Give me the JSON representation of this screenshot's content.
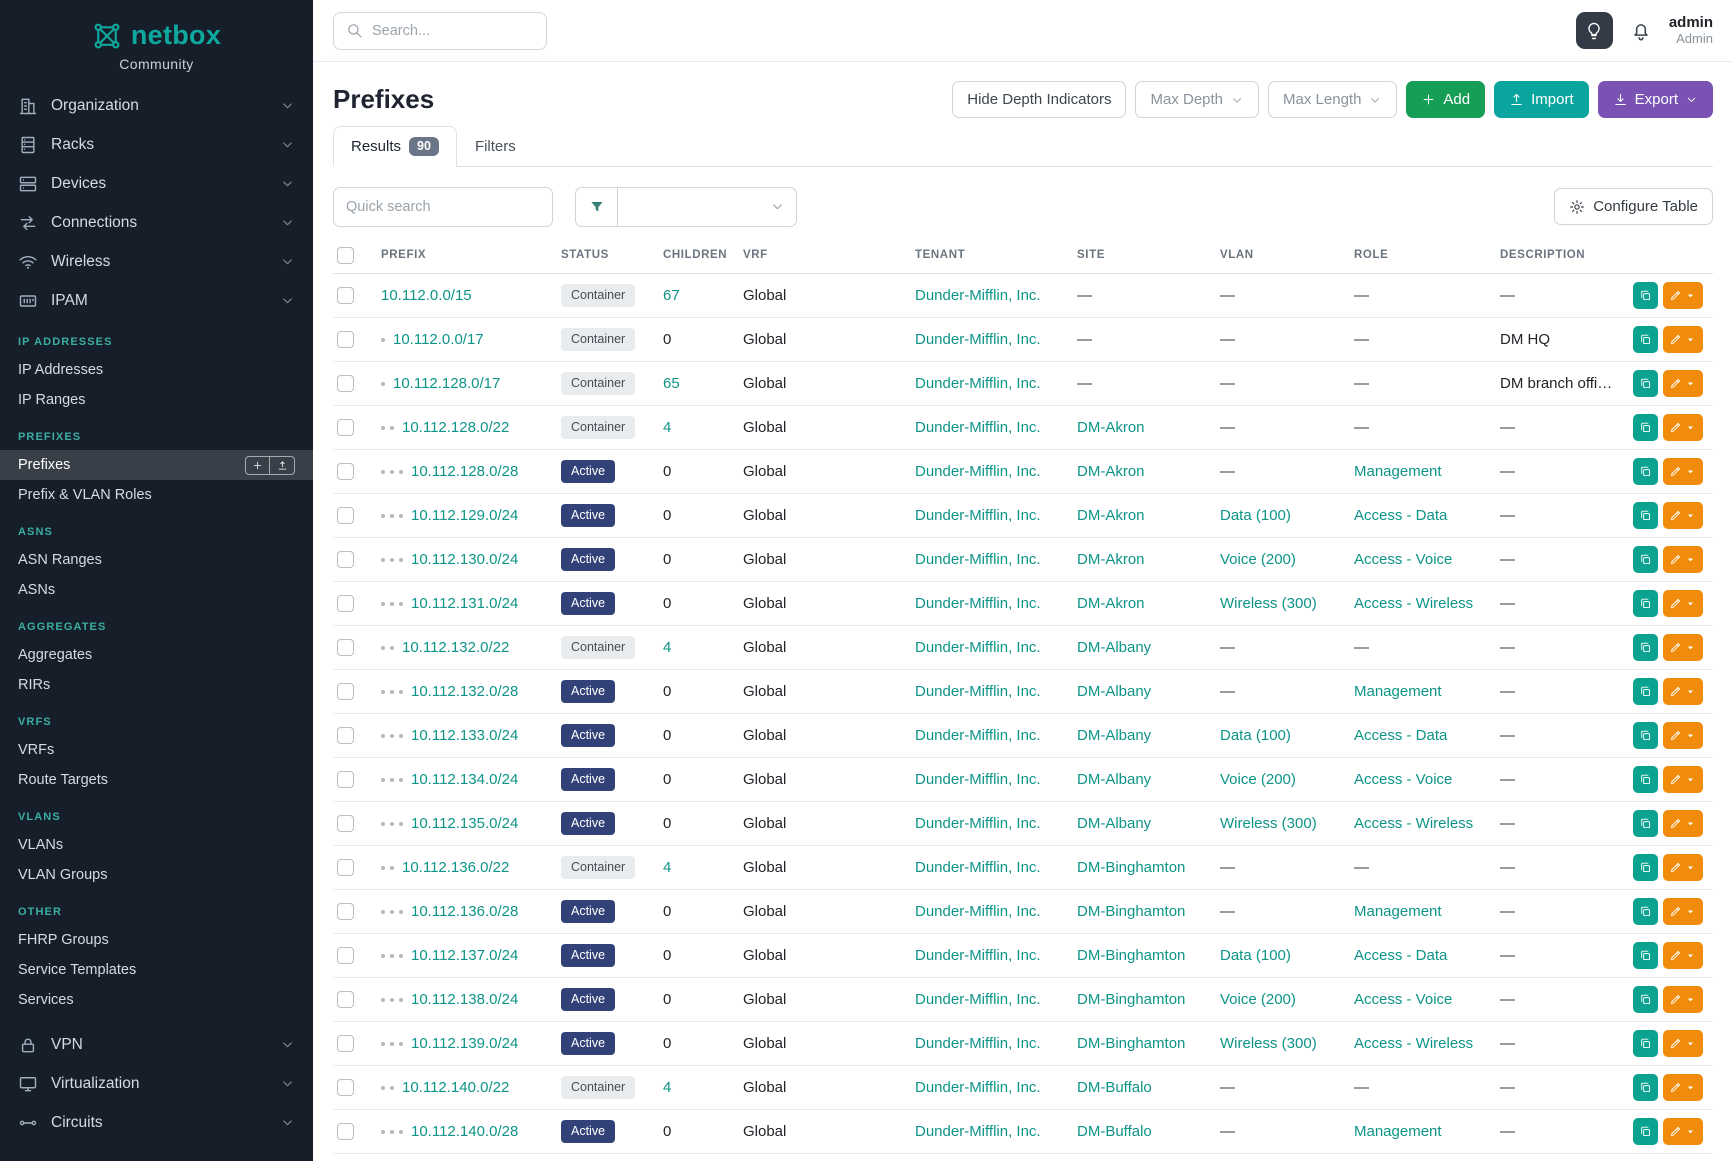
{
  "colors": {
    "link": "#0d9488",
    "brand_teal": "#0ea99e",
    "sidebar_background": "#161e2a",
    "section_header": "#3aaea2",
    "active_badge": "#324178",
    "container_badge_bg": "#e9ecef",
    "add_button": "#169e57",
    "import_button": "#0ba5a0",
    "export_button": "#7952b3",
    "clone_action": "#0ba390",
    "edit_action": "#f08b0b"
  },
  "sidebar": {
    "brand": "netbox",
    "subtitle": "Community",
    "logo_icon": "netbox-logo-icon",
    "nav_top": [
      {
        "label": "Organization",
        "icon": "building-icon"
      },
      {
        "label": "Racks",
        "icon": "rack-icon"
      },
      {
        "label": "Devices",
        "icon": "devices-icon"
      },
      {
        "label": "Connections",
        "icon": "connections-icon"
      },
      {
        "label": "Wireless",
        "icon": "wifi-icon"
      },
      {
        "label": "IPAM",
        "icon": "ipam-icon",
        "expanded": true
      }
    ],
    "sections": [
      {
        "header": "IP ADDRESSES",
        "items": [
          {
            "label": "IP Addresses"
          },
          {
            "label": "IP Ranges"
          }
        ]
      },
      {
        "header": "PREFIXES",
        "items": [
          {
            "label": "Prefixes",
            "active": true,
            "quick_actions": [
              {
                "name": "add-prefix-button",
                "icon": "plus-icon"
              },
              {
                "name": "import-prefixes-button",
                "icon": "upload-icon"
              }
            ]
          },
          {
            "label": "Prefix & VLAN Roles"
          }
        ]
      },
      {
        "header": "ASNS",
        "items": [
          {
            "label": "ASN Ranges"
          },
          {
            "label": "ASNs"
          }
        ]
      },
      {
        "header": "AGGREGATES",
        "items": [
          {
            "label": "Aggregates"
          },
          {
            "label": "RIRs"
          }
        ]
      },
      {
        "header": "VRFS",
        "items": [
          {
            "label": "VRFs"
          },
          {
            "label": "Route Targets"
          }
        ]
      },
      {
        "header": "VLANS",
        "items": [
          {
            "label": "VLANs"
          },
          {
            "label": "VLAN Groups"
          }
        ]
      },
      {
        "header": "OTHER",
        "items": [
          {
            "label": "FHRP Groups"
          },
          {
            "label": "Service Templates"
          },
          {
            "label": "Services"
          }
        ]
      }
    ],
    "nav_bottom": [
      {
        "label": "VPN",
        "icon": "lock-icon"
      },
      {
        "label": "Virtualization",
        "icon": "monitor-icon"
      },
      {
        "label": "Circuits",
        "icon": "circuits-icon"
      }
    ]
  },
  "topbar": {
    "search_placeholder": "Search...",
    "search_icon": "search-icon",
    "theme_icon": "lightbulb-icon",
    "notifications_icon": "bell-icon",
    "user_name": "admin",
    "user_role": "Admin"
  },
  "page": {
    "title": "Prefixes"
  },
  "toolbar": {
    "hide_depth_label": "Hide Depth Indicators",
    "max_depth_label": "Max Depth",
    "max_length_label": "Max Length",
    "add_label": "Add",
    "add_icon": "plus-icon",
    "import_label": "Import",
    "import_icon": "upload-icon",
    "export_label": "Export",
    "export_icon": "download-icon"
  },
  "tabs": [
    {
      "label": "Results",
      "badge": "90",
      "active": true
    },
    {
      "label": "Filters",
      "active": false
    }
  ],
  "controls": {
    "quick_search_placeholder": "Quick search",
    "filter_icon": "funnel-icon",
    "configure_table_label": "Configure Table",
    "configure_table_icon": "gear-icon"
  },
  "table": {
    "columns": [
      "PREFIX",
      "STATUS",
      "CHILDREN",
      "VRF",
      "TENANT",
      "SITE",
      "VLAN",
      "ROLE",
      "DESCRIPTION"
    ],
    "rows": [
      {
        "depth": 0,
        "prefix": "10.112.0.0/15",
        "status": "Container",
        "children": "67",
        "vrf": "Global",
        "tenant": "Dunder-Mifflin, Inc.",
        "site": "—",
        "vlan": "—",
        "role": "—",
        "description": "—"
      },
      {
        "depth": 1,
        "prefix": "10.112.0.0/17",
        "status": "Container",
        "children": "0",
        "vrf": "Global",
        "tenant": "Dunder-Mifflin, Inc.",
        "site": "—",
        "vlan": "—",
        "role": "—",
        "description": "DM HQ"
      },
      {
        "depth": 1,
        "prefix": "10.112.128.0/17",
        "status": "Container",
        "children": "65",
        "vrf": "Global",
        "tenant": "Dunder-Mifflin, Inc.",
        "site": "—",
        "vlan": "—",
        "role": "—",
        "description": "DM branch offices"
      },
      {
        "depth": 2,
        "prefix": "10.112.128.0/22",
        "status": "Container",
        "children": "4",
        "vrf": "Global",
        "tenant": "Dunder-Mifflin, Inc.",
        "site": "DM-Akron",
        "vlan": "—",
        "role": "—",
        "description": "—"
      },
      {
        "depth": 3,
        "prefix": "10.112.128.0/28",
        "status": "Active",
        "children": "0",
        "vrf": "Global",
        "tenant": "Dunder-Mifflin, Inc.",
        "site": "DM-Akron",
        "vlan": "—",
        "role": "Management",
        "description": "—"
      },
      {
        "depth": 3,
        "prefix": "10.112.129.0/24",
        "status": "Active",
        "children": "0",
        "vrf": "Global",
        "tenant": "Dunder-Mifflin, Inc.",
        "site": "DM-Akron",
        "vlan": "Data (100)",
        "role": "Access - Data",
        "description": "—"
      },
      {
        "depth": 3,
        "prefix": "10.112.130.0/24",
        "status": "Active",
        "children": "0",
        "vrf": "Global",
        "tenant": "Dunder-Mifflin, Inc.",
        "site": "DM-Akron",
        "vlan": "Voice (200)",
        "role": "Access - Voice",
        "description": "—"
      },
      {
        "depth": 3,
        "prefix": "10.112.131.0/24",
        "status": "Active",
        "children": "0",
        "vrf": "Global",
        "tenant": "Dunder-Mifflin, Inc.",
        "site": "DM-Akron",
        "vlan": "Wireless (300)",
        "role": "Access - Wireless",
        "description": "—"
      },
      {
        "depth": 2,
        "prefix": "10.112.132.0/22",
        "status": "Container",
        "children": "4",
        "vrf": "Global",
        "tenant": "Dunder-Mifflin, Inc.",
        "site": "DM-Albany",
        "vlan": "—",
        "role": "—",
        "description": "—"
      },
      {
        "depth": 3,
        "prefix": "10.112.132.0/28",
        "status": "Active",
        "children": "0",
        "vrf": "Global",
        "tenant": "Dunder-Mifflin, Inc.",
        "site": "DM-Albany",
        "vlan": "—",
        "role": "Management",
        "description": "—"
      },
      {
        "depth": 3,
        "prefix": "10.112.133.0/24",
        "status": "Active",
        "children": "0",
        "vrf": "Global",
        "tenant": "Dunder-Mifflin, Inc.",
        "site": "DM-Albany",
        "vlan": "Data (100)",
        "role": "Access - Data",
        "description": "—"
      },
      {
        "depth": 3,
        "prefix": "10.112.134.0/24",
        "status": "Active",
        "children": "0",
        "vrf": "Global",
        "tenant": "Dunder-Mifflin, Inc.",
        "site": "DM-Albany",
        "vlan": "Voice (200)",
        "role": "Access - Voice",
        "description": "—"
      },
      {
        "depth": 3,
        "prefix": "10.112.135.0/24",
        "status": "Active",
        "children": "0",
        "vrf": "Global",
        "tenant": "Dunder-Mifflin, Inc.",
        "site": "DM-Albany",
        "vlan": "Wireless (300)",
        "role": "Access - Wireless",
        "description": "—"
      },
      {
        "depth": 2,
        "prefix": "10.112.136.0/22",
        "status": "Container",
        "children": "4",
        "vrf": "Global",
        "tenant": "Dunder-Mifflin, Inc.",
        "site": "DM-Binghamton",
        "vlan": "—",
        "role": "—",
        "description": "—"
      },
      {
        "depth": 3,
        "prefix": "10.112.136.0/28",
        "status": "Active",
        "children": "0",
        "vrf": "Global",
        "tenant": "Dunder-Mifflin, Inc.",
        "site": "DM-Binghamton",
        "vlan": "—",
        "role": "Management",
        "description": "—"
      },
      {
        "depth": 3,
        "prefix": "10.112.137.0/24",
        "status": "Active",
        "children": "0",
        "vrf": "Global",
        "tenant": "Dunder-Mifflin, Inc.",
        "site": "DM-Binghamton",
        "vlan": "Data (100)",
        "role": "Access - Data",
        "description": "—"
      },
      {
        "depth": 3,
        "prefix": "10.112.138.0/24",
        "status": "Active",
        "children": "0",
        "vrf": "Global",
        "tenant": "Dunder-Mifflin, Inc.",
        "site": "DM-Binghamton",
        "vlan": "Voice (200)",
        "role": "Access - Voice",
        "description": "—"
      },
      {
        "depth": 3,
        "prefix": "10.112.139.0/24",
        "status": "Active",
        "children": "0",
        "vrf": "Global",
        "tenant": "Dunder-Mifflin, Inc.",
        "site": "DM-Binghamton",
        "vlan": "Wireless (300)",
        "role": "Access - Wireless",
        "description": "—"
      },
      {
        "depth": 2,
        "prefix": "10.112.140.0/22",
        "status": "Container",
        "children": "4",
        "vrf": "Global",
        "tenant": "Dunder-Mifflin, Inc.",
        "site": "DM-Buffalo",
        "vlan": "—",
        "role": "—",
        "description": "—"
      },
      {
        "depth": 3,
        "prefix": "10.112.140.0/28",
        "status": "Active",
        "children": "0",
        "vrf": "Global",
        "tenant": "Dunder-Mifflin, Inc.",
        "site": "DM-Buffalo",
        "vlan": "—",
        "role": "Management",
        "description": "—"
      }
    ]
  }
}
